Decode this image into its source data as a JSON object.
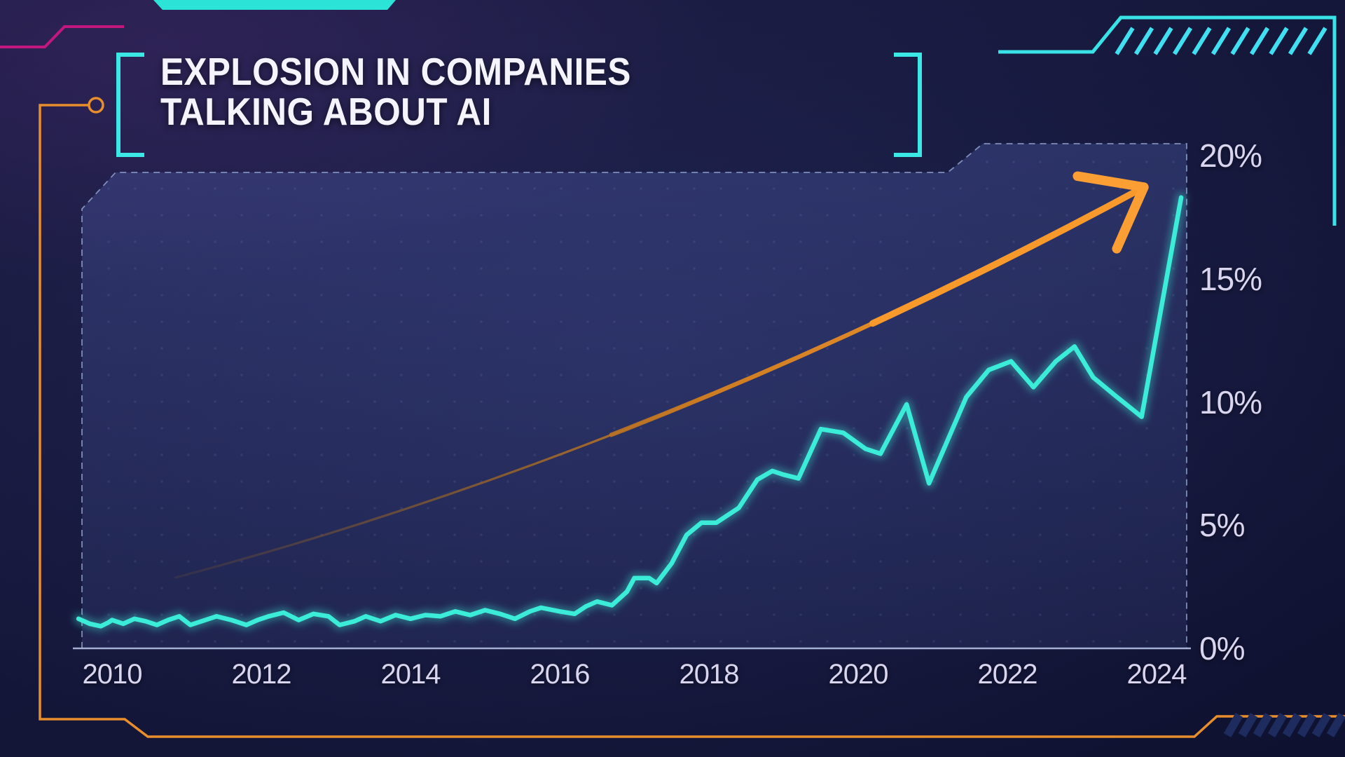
{
  "title": {
    "line1": "EXPLOSION IN COMPANIES",
    "line2": "TALKING ABOUT AI"
  },
  "y_axis": {
    "labels": [
      "20%",
      "15%",
      "10%",
      "5%",
      "0%"
    ],
    "values": [
      20,
      15,
      10,
      5,
      0
    ]
  },
  "x_axis": {
    "labels": [
      "2010",
      "2012",
      "2014",
      "2016",
      "2018",
      "2020",
      "2022",
      "2024"
    ],
    "years": [
      2010,
      2012,
      2014,
      2016,
      2018,
      2020,
      2022,
      2024
    ]
  },
  "chart_data": {
    "type": "line",
    "title": "EXPLOSION IN COMPANIES TALKING ABOUT AI",
    "xlabel": "",
    "ylabel": "",
    "xlim": [
      2009.5,
      2024.4
    ],
    "ylim": [
      0,
      20
    ],
    "x_ticks": [
      2010,
      2012,
      2014,
      2016,
      2018,
      2020,
      2022,
      2024
    ],
    "y_ticks_percent": [
      0,
      5,
      10,
      15,
      20
    ],
    "grid": false,
    "legend": "none",
    "series": [
      {
        "name": "companies-talking-about-ai",
        "x": [
          2009.55,
          2009.7,
          2009.85,
          2009.95,
          2010.0,
          2010.15,
          2010.3,
          2010.45,
          2010.6,
          2010.75,
          2010.9,
          2011.05,
          2011.2,
          2011.4,
          2011.6,
          2011.8,
          2011.95,
          2012.1,
          2012.3,
          2012.5,
          2012.7,
          2012.9,
          2013.05,
          2013.25,
          2013.4,
          2013.6,
          2013.8,
          2014.0,
          2014.2,
          2014.4,
          2014.6,
          2014.8,
          2015.0,
          2015.2,
          2015.4,
          2015.6,
          2015.75,
          2016.0,
          2016.2,
          2016.35,
          2016.5,
          2016.7,
          2016.9,
          2017.0,
          2017.2,
          2017.3,
          2017.5,
          2017.7,
          2017.9,
          2018.1,
          2018.4,
          2018.65,
          2018.85,
          2019.0,
          2019.2,
          2019.5,
          2019.8,
          2020.1,
          2020.3,
          2020.65,
          2020.95,
          2021.45,
          2021.75,
          2022.05,
          2022.35,
          2022.65,
          2022.9,
          2023.15,
          2023.45,
          2023.8,
          2024.33
        ],
        "y": [
          1.2,
          1.0,
          0.9,
          1.05,
          1.15,
          1.0,
          1.2,
          1.1,
          0.95,
          1.15,
          1.3,
          0.95,
          1.1,
          1.3,
          1.15,
          0.95,
          1.15,
          1.3,
          1.45,
          1.15,
          1.4,
          1.3,
          0.95,
          1.1,
          1.3,
          1.1,
          1.35,
          1.2,
          1.35,
          1.3,
          1.5,
          1.35,
          1.55,
          1.4,
          1.2,
          1.5,
          1.65,
          1.5,
          1.4,
          1.7,
          1.9,
          1.75,
          2.3,
          2.85,
          2.85,
          2.65,
          3.45,
          4.6,
          5.1,
          5.1,
          5.7,
          6.85,
          7.2,
          7.05,
          6.9,
          8.9,
          8.75,
          8.1,
          7.9,
          9.9,
          6.7,
          10.2,
          11.3,
          11.65,
          10.6,
          11.65,
          12.25,
          11.0,
          10.25,
          9.4,
          18.3
        ]
      }
    ],
    "annotations": [
      {
        "type": "trend-arrow",
        "from": {
          "x": 2010.85,
          "y": 2.87
        },
        "to": {
          "x": 2023.83,
          "y": 18.72
        },
        "color": "#f8992e"
      }
    ],
    "colors": {
      "line": "#3bedd9",
      "arrow": "#f8992e",
      "panel": "#2a3065",
      "background": "#15173a",
      "tick_text": "#d9d5ee",
      "title_text": "#f5f3fb",
      "accent_cyan": "#38e5e5",
      "accent_magenta": "#c2187d",
      "accent_orange": "#e98e2c"
    }
  }
}
